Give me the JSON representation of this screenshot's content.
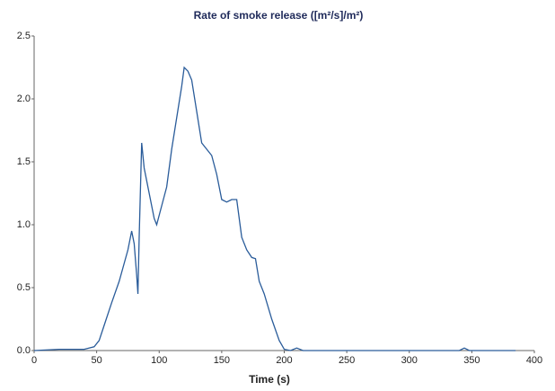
{
  "chart_data": {
    "type": "line",
    "title": "Rate of smoke release ([m²/s]/m²)",
    "x_label": "Time (s)",
    "series": [
      {
        "color": "#2a5c9a",
        "x": [
          0,
          20,
          40,
          48,
          52,
          56,
          62,
          68,
          75,
          78,
          80,
          82,
          83,
          84,
          86,
          88,
          92,
          96,
          98,
          102,
          106,
          110,
          114,
          118,
          120,
          123,
          126,
          130,
          134,
          138,
          142,
          146,
          150,
          154,
          158,
          162,
          166,
          170,
          174,
          177,
          180,
          184,
          190,
          196,
          200,
          205,
          210,
          215,
          250,
          340,
          344,
          348,
          385
        ],
        "values": [
          0,
          0.01,
          0.01,
          0.03,
          0.08,
          0.2,
          0.38,
          0.55,
          0.8,
          0.95,
          0.85,
          0.6,
          0.45,
          0.9,
          1.65,
          1.45,
          1.25,
          1.05,
          1.0,
          1.15,
          1.3,
          1.6,
          1.85,
          2.1,
          2.25,
          2.22,
          2.15,
          1.9,
          1.65,
          1.6,
          1.55,
          1.4,
          1.2,
          1.18,
          1.2,
          1.2,
          0.9,
          0.8,
          0.74,
          0.73,
          0.55,
          0.45,
          0.25,
          0.08,
          0.01,
          0,
          0.02,
          0,
          0,
          0,
          0.02,
          0,
          0
        ]
      }
    ],
    "xlim": [
      0,
      400
    ],
    "xticks": [
      0,
      50,
      100,
      150,
      200,
      250,
      300,
      350,
      400
    ],
    "ylim": [
      0,
      2.5
    ],
    "yticks": [
      {
        "value": 0,
        "label": "0.0"
      },
      0.5,
      {
        "value": 1,
        "label": "1.0"
      },
      1.5,
      {
        "value": 2,
        "label": "2.0"
      },
      2.5
    ]
  }
}
